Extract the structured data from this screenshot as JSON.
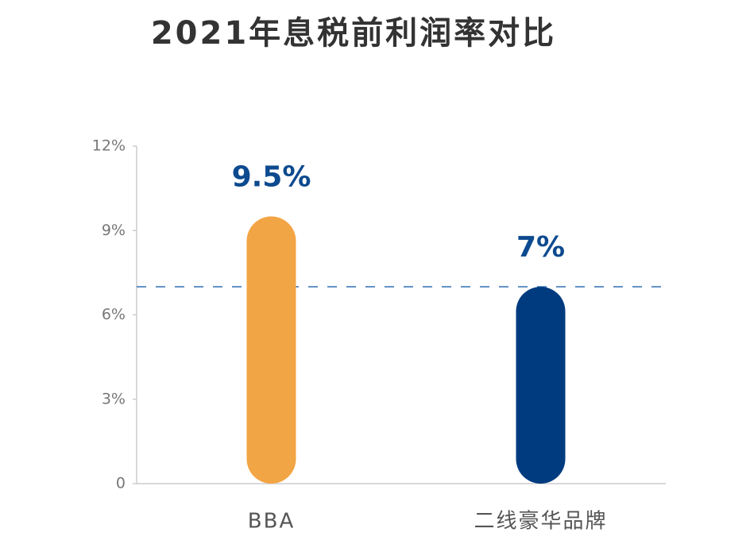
{
  "chart_data": {
    "type": "bar",
    "title": "2021年息税前利润率对比",
    "categories": [
      "BBA",
      "二线豪华品牌"
    ],
    "values": [
      9.5,
      7
    ],
    "value_labels": [
      "9.5%",
      "7%"
    ],
    "colors": [
      "#F2A544",
      "#003B80"
    ],
    "ylim": [
      0,
      12
    ],
    "yticks": [
      0,
      {
        "value": 3,
        "label": "3%"
      },
      {
        "value": 6,
        "label": "6%"
      },
      {
        "value": 9,
        "label": "9%"
      },
      {
        "value": 12,
        "label": "12%"
      }
    ]
  }
}
